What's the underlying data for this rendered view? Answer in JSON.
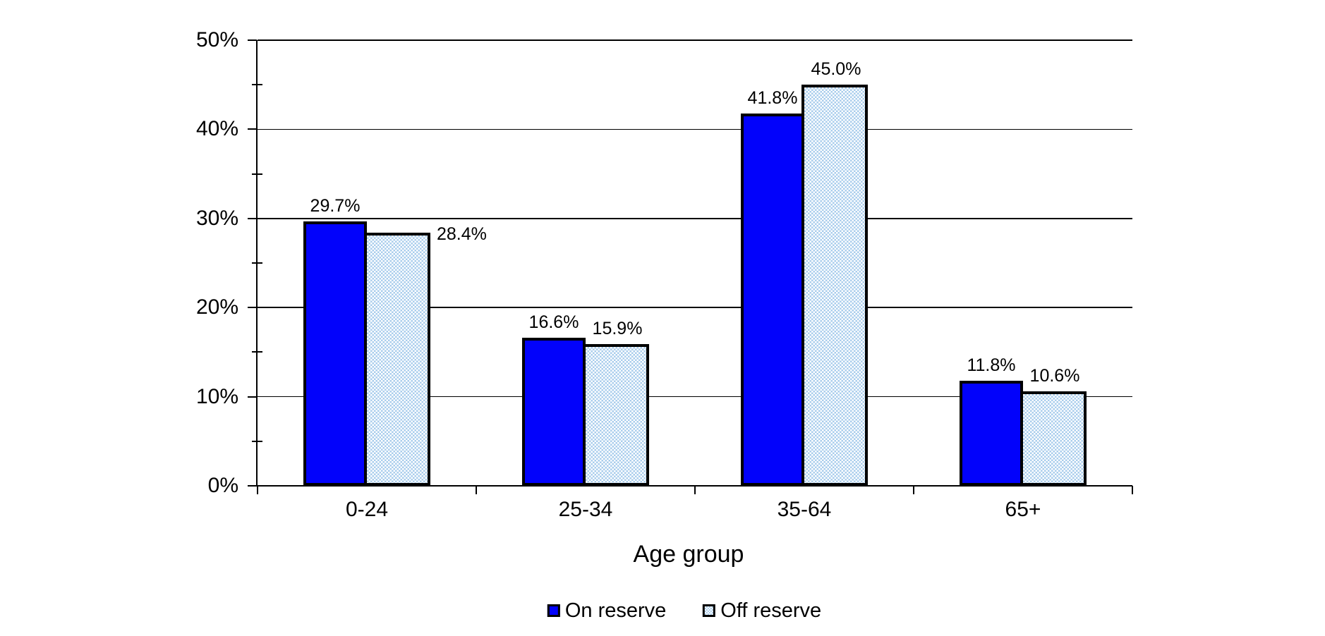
{
  "chart_data": {
    "type": "bar",
    "title": "",
    "xlabel": "Age group",
    "ylabel": "",
    "categories": [
      "0-24",
      "25-34",
      "35-64",
      "65+"
    ],
    "series": [
      {
        "name": "On reserve",
        "style": "solid",
        "color": "#0202fb",
        "values": [
          29.7,
          16.6,
          41.8,
          11.8
        ],
        "labels": [
          "29.7%",
          "16.6%",
          "41.8%",
          "11.8%"
        ],
        "label_placements": [
          "above",
          "above",
          "above",
          "above"
        ]
      },
      {
        "name": "Off reserve",
        "style": "checker-pattern",
        "color": "#a9cdec",
        "pattern_bg": "#ffffff",
        "values": [
          28.4,
          15.9,
          45.0,
          10.6
        ],
        "labels": [
          "28.4%",
          "15.9%",
          "45.0%",
          "10.6%"
        ],
        "label_placements": [
          "right",
          "above",
          "above",
          "above"
        ]
      }
    ],
    "y_axis": {
      "min": 0,
      "max": 50,
      "major_step": 10,
      "minor_step": 5,
      "tick_labels": [
        "0%",
        "10%",
        "20%",
        "30%",
        "40%",
        "50%"
      ]
    },
    "grid": true,
    "legend_position": "bottom",
    "bar_border_color": "#000000"
  }
}
